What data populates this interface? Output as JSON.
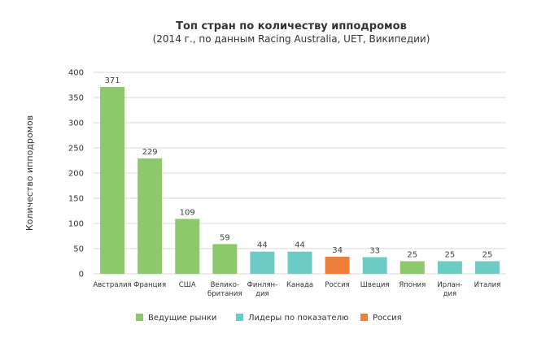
{
  "chart_data": {
    "type": "bar",
    "title": "Топ стран по количеству ипподромов",
    "subtitle": "(2014 г., по данным Racing Australia, UET, Википедии)",
    "xlabel": "",
    "ylabel": "Количество ипподромов",
    "ylim": [
      0,
      400
    ],
    "yticks": [
      0,
      50,
      100,
      150,
      200,
      250,
      300,
      350,
      400
    ],
    "grid": true,
    "legend_position": "bottom",
    "categories": [
      [
        "Австралия"
      ],
      [
        "Франция"
      ],
      [
        "США"
      ],
      [
        "Велико-",
        "британия"
      ],
      [
        "Финлян-",
        "дия"
      ],
      [
        "Канада"
      ],
      [
        "Россия"
      ],
      [
        "Швеция"
      ],
      [
        "Япония"
      ],
      [
        "Ирлан-",
        "дия"
      ],
      [
        "Италия"
      ]
    ],
    "values": [
      371,
      229,
      109,
      59,
      44,
      44,
      34,
      33,
      25,
      25,
      25
    ],
    "groups": [
      "leading",
      "leading",
      "leading",
      "leading",
      "leaders",
      "leaders",
      "russia",
      "leaders",
      "leading",
      "leaders",
      "leaders"
    ],
    "legend": [
      {
        "key": "leading",
        "label": "Ведущие рынки",
        "color": "#8dc96b"
      },
      {
        "key": "leaders",
        "label": "Лидеры по показателю",
        "color": "#6ccbc4"
      },
      {
        "key": "russia",
        "label": "Россия",
        "color": "#f07f3c"
      }
    ]
  }
}
